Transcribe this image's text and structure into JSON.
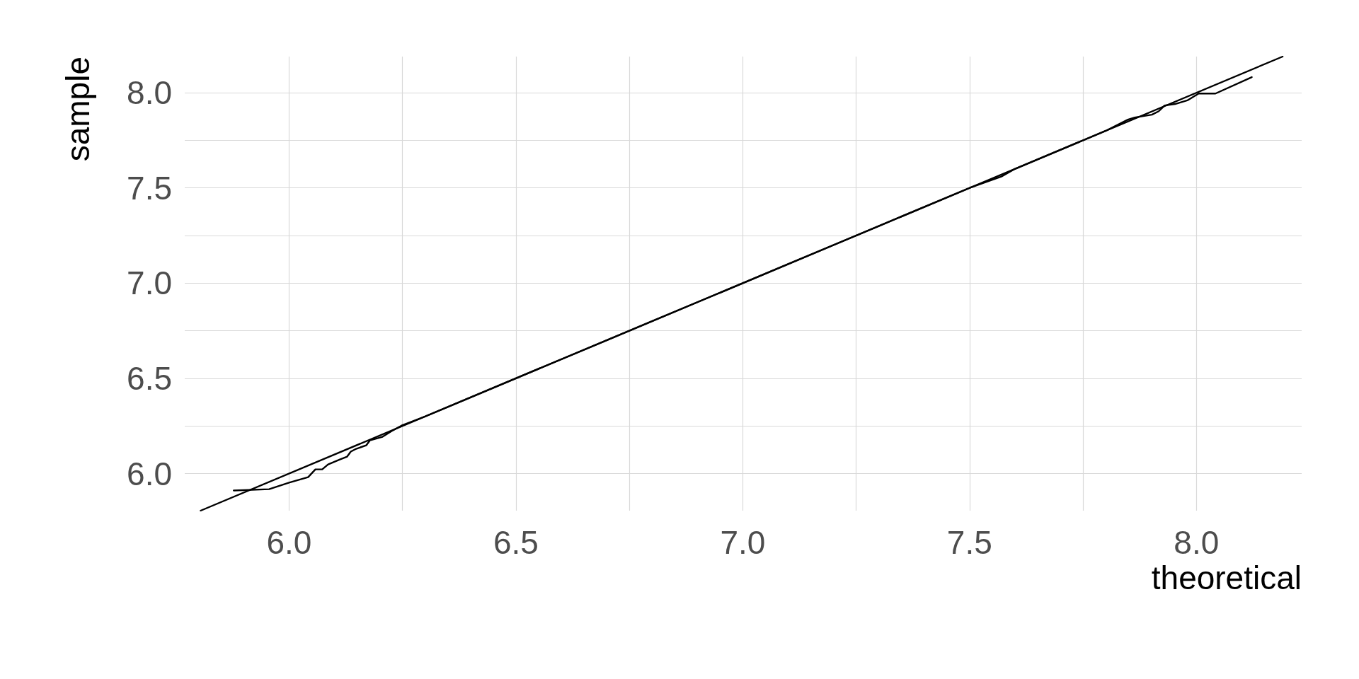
{
  "chart_data": {
    "type": "line",
    "xlabel": "theoretical",
    "ylabel": "sample",
    "series": [
      {
        "color": "#000000",
        "x": [
          5.878,
          5.956,
          6.0,
          6.042,
          6.058,
          6.073,
          6.086,
          6.112,
          6.128,
          6.136,
          6.148,
          6.17,
          6.178,
          6.206,
          6.226,
          6.248,
          6.3,
          6.4,
          6.5,
          6.6,
          6.7,
          6.8,
          6.9,
          7.0,
          7.1,
          7.2,
          7.3,
          7.4,
          7.5,
          7.57,
          7.6,
          7.7,
          7.8,
          7.849,
          7.864,
          7.902,
          7.917,
          7.93,
          7.953,
          7.98,
          8.005,
          8.042,
          8.122
        ],
        "values": [
          5.911,
          5.918,
          5.952,
          5.981,
          6.022,
          6.022,
          6.048,
          6.074,
          6.089,
          6.115,
          6.13,
          6.148,
          6.174,
          6.193,
          6.223,
          6.252,
          6.3,
          6.4,
          6.5,
          6.6,
          6.7,
          6.8,
          6.9,
          7.0,
          7.1,
          7.2,
          7.3,
          7.4,
          7.5,
          7.56,
          7.6,
          7.7,
          7.8,
          7.859,
          7.87,
          7.885,
          7.903,
          7.933,
          7.941,
          7.96,
          7.996,
          7.996,
          8.082
        ]
      },
      {
        "color": "#000000",
        "x": [
          5.805,
          8.19
        ],
        "values": [
          5.805,
          8.19
        ]
      }
    ],
    "xlim": [
      5.77,
      8.232
    ],
    "ylim": [
      5.805,
      8.19
    ],
    "xticks": [
      {
        "value": 6,
        "label": "6.0"
      },
      {
        "value": 6.25,
        "label": null
      },
      6.5,
      {
        "value": 6.75,
        "label": null
      },
      {
        "value": 7,
        "label": "7.0"
      },
      {
        "value": 7.25,
        "label": null
      },
      7.5,
      {
        "value": 7.75,
        "label": null
      },
      {
        "value": 8,
        "label": "8.0"
      }
    ],
    "yticks": [
      {
        "value": 6,
        "label": "6.0"
      },
      {
        "value": 6.25,
        "label": null
      },
      6.5,
      {
        "value": 6.75,
        "label": null
      },
      {
        "value": 7,
        "label": "7.0"
      },
      {
        "value": 7.25,
        "label": null
      },
      7.5,
      {
        "value": 7.75,
        "label": null
      },
      {
        "value": 8,
        "label": "8.0"
      }
    ],
    "grid": true,
    "marker": "none",
    "line_style": "solid"
  }
}
